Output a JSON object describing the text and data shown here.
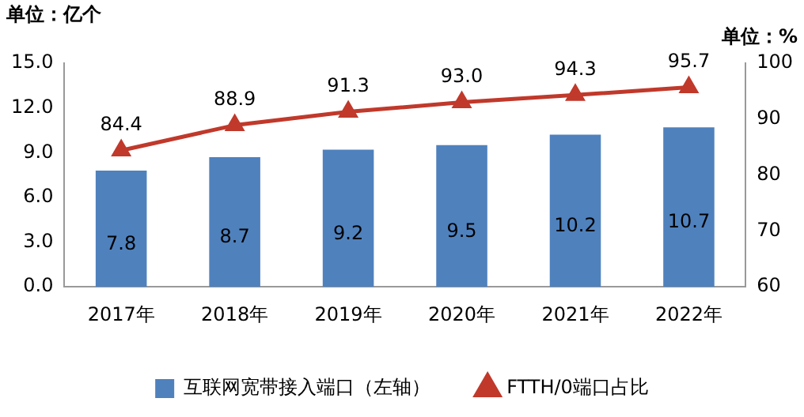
{
  "chart_data": {
    "type": "bar",
    "ylabel": "单位：亿个",
    "y2label": "单位：%",
    "categories": [
      "2017年",
      "2018年",
      "2019年",
      "2020年",
      "2021年",
      "2022年"
    ],
    "series": [
      {
        "name": "互联网宽带接入端口（左轴）",
        "color": "#4f81bd",
        "values": [
          7.8,
          8.7,
          9.2,
          9.5,
          10.2,
          10.7
        ],
        "value_labels": [
          "7.8",
          "8.7",
          "9.2",
          "9.5",
          "10.2",
          "10.7"
        ]
      },
      {
        "name": "FTTH/0端口占比",
        "type": "line",
        "axis": "y2",
        "color": "#c0392b",
        "marker": "triangle",
        "values": [
          84.4,
          88.9,
          91.3,
          93.0,
          94.3,
          95.7
        ],
        "value_labels": [
          "84.4",
          "88.9",
          "91.3",
          "93.0",
          "94.3",
          "95.7"
        ]
      }
    ],
    "ylim": [
      0,
      15
    ],
    "yticks": [
      {
        "value": 0,
        "label": "0.0"
      },
      {
        "value": 3,
        "label": "3.0"
      },
      {
        "value": 6,
        "label": "6.0"
      },
      {
        "value": 9,
        "label": "9.0"
      },
      {
        "value": 12,
        "label": "12.0"
      },
      {
        "value": 15,
        "label": "15.0"
      }
    ],
    "y2lim": [
      60,
      100
    ],
    "y2ticks": [
      60,
      70,
      80,
      90,
      100
    ],
    "grid": false,
    "legend": "bottom"
  }
}
